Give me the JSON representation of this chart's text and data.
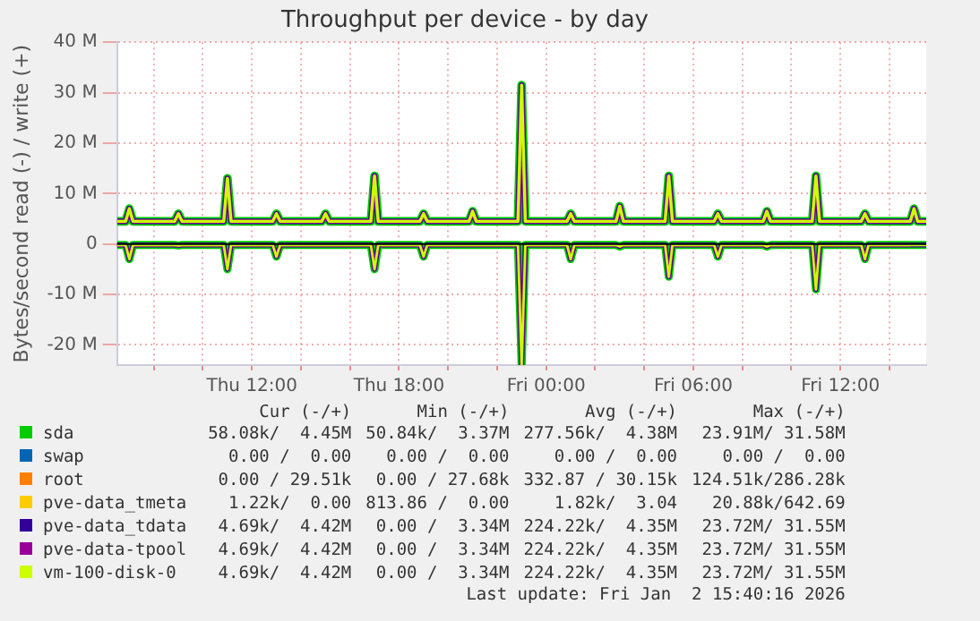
{
  "chart_data": {
    "type": "line",
    "title": "Throughput per device - by day",
    "ylabel": "Bytes/second read (-) / write (+)",
    "x": [
      "2026-01-01T06:30",
      "2026-01-01T06:51",
      "2026-01-01T07:00",
      "2026-01-01T07:09",
      "2026-01-01T08:51",
      "2026-01-01T09:00",
      "2026-01-01T09:09",
      "2026-01-01T10:51",
      "2026-01-01T11:00",
      "2026-01-01T11:09",
      "2026-01-01T12:51",
      "2026-01-01T13:00",
      "2026-01-01T13:09",
      "2026-01-01T14:51",
      "2026-01-01T15:00",
      "2026-01-01T15:09",
      "2026-01-01T16:51",
      "2026-01-01T17:00",
      "2026-01-01T17:09",
      "2026-01-01T18:51",
      "2026-01-01T19:00",
      "2026-01-01T19:09",
      "2026-01-01T20:51",
      "2026-01-01T21:00",
      "2026-01-01T21:09",
      "2026-01-01T22:51",
      "2026-01-01T23:00",
      "2026-01-01T23:09",
      "2026-01-02T00:51",
      "2026-01-02T01:00",
      "2026-01-02T01:09",
      "2026-01-02T02:51",
      "2026-01-02T03:00",
      "2026-01-02T03:09",
      "2026-01-02T04:51",
      "2026-01-02T05:00",
      "2026-01-02T05:09",
      "2026-01-02T06:51",
      "2026-01-02T07:00",
      "2026-01-02T07:09",
      "2026-01-02T08:51",
      "2026-01-02T09:00",
      "2026-01-02T09:09",
      "2026-01-02T10:51",
      "2026-01-02T11:00",
      "2026-01-02T11:09",
      "2026-01-02T12:51",
      "2026-01-02T13:00",
      "2026-01-02T13:09",
      "2026-01-02T14:51",
      "2026-01-02T15:00",
      "2026-01-02T15:09",
      "2026-01-02T15:30"
    ],
    "xlim": [
      "2026-01-01T06:30",
      "2026-01-02T15:30"
    ],
    "xticks": [
      {
        "value": "2026-01-01T08:00",
        "label": null
      },
      {
        "value": "2026-01-01T10:00",
        "label": null
      },
      {
        "value": "2026-01-01T12:00",
        "label": "Thu 12:00"
      },
      {
        "value": "2026-01-01T14:00",
        "label": null
      },
      {
        "value": "2026-01-01T16:00",
        "label": null
      },
      {
        "value": "2026-01-01T18:00",
        "label": "Thu 18:00"
      },
      {
        "value": "2026-01-01T20:00",
        "label": null
      },
      {
        "value": "2026-01-01T22:00",
        "label": null
      },
      {
        "value": "2026-01-02T00:00",
        "label": "Fri 00:00"
      },
      {
        "value": "2026-01-02T02:00",
        "label": null
      },
      {
        "value": "2026-01-02T04:00",
        "label": null
      },
      {
        "value": "2026-01-02T06:00",
        "label": "Fri 06:00"
      },
      {
        "value": "2026-01-02T08:00",
        "label": null
      },
      {
        "value": "2026-01-02T10:00",
        "label": null
      },
      {
        "value": "2026-01-02T12:00",
        "label": "Fri 12:00"
      },
      {
        "value": "2026-01-02T14:00",
        "label": null
      }
    ],
    "ylim": [
      -24,
      40
    ],
    "yticks": [
      {
        "value": -20,
        "label": "-20 M"
      },
      {
        "value": -10,
        "label": "-10 M"
      },
      0,
      {
        "value": 10,
        "label": "10 M"
      },
      {
        "value": 20,
        "label": "20 M"
      },
      {
        "value": 30,
        "label": "30 M"
      },
      {
        "value": 40,
        "label": "40 M"
      }
    ],
    "grid": true,
    "legend": "bottom",
    "marker": "none",
    "line_style": "solid",
    "ref_lines": [
      {
        "axis": "y",
        "value": 0,
        "color": "#000000"
      }
    ],
    "series": [
      {
        "name": "sda",
        "color": "#00cc00",
        "values": [
          4.5,
          4.5,
          7,
          4.5,
          4.5,
          6,
          4.5,
          4.5,
          13,
          4.5,
          4.5,
          6,
          4.5,
          4.5,
          6,
          4.5,
          4.5,
          13.5,
          4.5,
          4.5,
          6,
          4.5,
          4.5,
          6.5,
          4.5,
          4.5,
          31.5,
          4.5,
          4.5,
          6,
          4.5,
          4.5,
          7.5,
          4.5,
          4.5,
          13.5,
          4.5,
          4.5,
          6,
          4.5,
          4.5,
          6.5,
          4.5,
          4.5,
          13.5,
          4.5,
          4.5,
          6,
          4.5,
          4.5,
          7,
          4.5,
          4.5
        ]
      },
      {
        "color": "#00cc00",
        "values": [
          -0.2,
          -0.2,
          -3,
          -0.2,
          -0.2,
          -0.3,
          -0.2,
          -0.2,
          -5,
          -0.2,
          -0.2,
          -2.5,
          -0.2,
          -0.2,
          -0.2,
          -0.2,
          -0.2,
          -5,
          -0.2,
          -0.2,
          -2.5,
          -0.2,
          -0.2,
          -0.2,
          -0.2,
          -0.2,
          -24,
          -0.2,
          -0.2,
          -3,
          -0.2,
          -0.2,
          -0.5,
          -0.2,
          -0.2,
          -6.5,
          -0.2,
          -0.2,
          -2.5,
          -0.2,
          -0.2,
          -0.5,
          -0.2,
          -0.2,
          -9,
          -0.2,
          -0.2,
          -3,
          -0.2,
          -0.2,
          -0.2,
          -0.2,
          -0.2
        ]
      },
      {
        "name": "swap",
        "color": "#0066b3",
        "values": [
          null,
          null,
          null,
          null,
          null,
          null,
          null,
          null,
          null,
          null,
          null,
          null,
          null,
          null,
          null,
          null,
          null,
          null,
          null,
          null,
          null,
          null,
          null,
          null,
          null,
          null,
          null,
          null,
          null,
          null,
          null,
          null,
          null,
          null,
          null,
          null,
          null,
          null,
          null,
          null,
          null,
          null,
          null,
          null,
          null,
          null,
          null,
          null,
          null,
          null,
          null,
          null,
          null
        ]
      },
      {
        "name": "root",
        "color": "#ff8000",
        "values": [
          null,
          null,
          null,
          null,
          null,
          null,
          null,
          null,
          null,
          null,
          null,
          null,
          null,
          null,
          null,
          null,
          null,
          null,
          null,
          null,
          null,
          null,
          null,
          null,
          null,
          null,
          null,
          null,
          null,
          null,
          null,
          null,
          null,
          null,
          null,
          null,
          null,
          null,
          null,
          null,
          null,
          null,
          null,
          null,
          null,
          null,
          null,
          null,
          null,
          null,
          null,
          null,
          null
        ]
      },
      {
        "name": "pve-data_tmeta",
        "color": "#ffcc00",
        "values": [
          null,
          null,
          null,
          null,
          null,
          null,
          null,
          null,
          null,
          null,
          null,
          null,
          null,
          null,
          null,
          null,
          null,
          null,
          null,
          null,
          null,
          null,
          null,
          null,
          null,
          null,
          null,
          null,
          null,
          null,
          null,
          null,
          null,
          null,
          null,
          null,
          null,
          null,
          null,
          null,
          null,
          null,
          null,
          null,
          null,
          null,
          null,
          null,
          null,
          null,
          null,
          null,
          null
        ]
      },
      {
        "name": "pve-data_tdata",
        "color": "#330099",
        "values": [
          4.5,
          4.5,
          7,
          4.5,
          4.5,
          6,
          4.5,
          4.5,
          13,
          4.5,
          4.5,
          6,
          4.5,
          4.5,
          6,
          4.5,
          4.5,
          13.5,
          4.5,
          4.5,
          6,
          4.5,
          4.5,
          6.5,
          4.5,
          4.5,
          31.5,
          4.5,
          4.5,
          6,
          4.5,
          4.5,
          7.5,
          4.5,
          4.5,
          13.5,
          4.5,
          4.5,
          6,
          4.5,
          4.5,
          6.5,
          4.5,
          4.5,
          13.5,
          4.5,
          4.5,
          6,
          4.5,
          4.5,
          7,
          4.5,
          4.5
        ]
      },
      {
        "color": "#330099",
        "values": [
          -0.2,
          -0.2,
          -3,
          -0.2,
          -0.2,
          -0.3,
          -0.2,
          -0.2,
          -5,
          -0.2,
          -0.2,
          -2.5,
          -0.2,
          -0.2,
          -0.2,
          -0.2,
          -0.2,
          -5,
          -0.2,
          -0.2,
          -2.5,
          -0.2,
          -0.2,
          -0.2,
          -0.2,
          -0.2,
          -24,
          -0.2,
          -0.2,
          -3,
          -0.2,
          -0.2,
          -0.5,
          -0.2,
          -0.2,
          -6.5,
          -0.2,
          -0.2,
          -2.5,
          -0.2,
          -0.2,
          -0.5,
          -0.2,
          -0.2,
          -9,
          -0.2,
          -0.2,
          -3,
          -0.2,
          -0.2,
          -0.2,
          -0.2,
          -0.2
        ]
      },
      {
        "name": "pve-data-tpool",
        "color": "#990099",
        "values": [
          4.5,
          4.5,
          7,
          4.5,
          4.5,
          6,
          4.5,
          4.5,
          13,
          4.5,
          4.5,
          6,
          4.5,
          4.5,
          6,
          4.5,
          4.5,
          13.5,
          4.5,
          4.5,
          6,
          4.5,
          4.5,
          6.5,
          4.5,
          4.5,
          31.5,
          4.5,
          4.5,
          6,
          4.5,
          4.5,
          7.5,
          4.5,
          4.5,
          13.5,
          4.5,
          4.5,
          6,
          4.5,
          4.5,
          6.5,
          4.5,
          4.5,
          13.5,
          4.5,
          4.5,
          6,
          4.5,
          4.5,
          7,
          4.5,
          4.5
        ]
      },
      {
        "color": "#990099",
        "values": [
          -0.2,
          -0.2,
          -3,
          -0.2,
          -0.2,
          -0.3,
          -0.2,
          -0.2,
          -5,
          -0.2,
          -0.2,
          -2.5,
          -0.2,
          -0.2,
          -0.2,
          -0.2,
          -0.2,
          -5,
          -0.2,
          -0.2,
          -2.5,
          -0.2,
          -0.2,
          -0.2,
          -0.2,
          -0.2,
          -24,
          -0.2,
          -0.2,
          -3,
          -0.2,
          -0.2,
          -0.5,
          -0.2,
          -0.2,
          -6.5,
          -0.2,
          -0.2,
          -2.5,
          -0.2,
          -0.2,
          -0.5,
          -0.2,
          -0.2,
          -9,
          -0.2,
          -0.2,
          -3,
          -0.2,
          -0.2,
          null,
          null,
          null
        ]
      },
      {
        "name": "vm-100-disk-0",
        "color": "#ccff00",
        "values": [
          4.5,
          4.5,
          7,
          4.5,
          4.5,
          6,
          4.5,
          4.5,
          13,
          4.5,
          4.5,
          6,
          4.5,
          4.5,
          6,
          4.5,
          4.5,
          13.5,
          4.5,
          4.5,
          6,
          4.5,
          4.5,
          6.5,
          4.5,
          4.5,
          31.5,
          4.5,
          4.5,
          6,
          4.5,
          4.5,
          7.5,
          4.5,
          4.5,
          13.5,
          4.5,
          4.5,
          6,
          4.5,
          4.5,
          6.5,
          4.5,
          4.5,
          13.5,
          4.5,
          4.5,
          6,
          4.5,
          4.5,
          7,
          4.5,
          4.5
        ]
      },
      {
        "color": "#ccff00",
        "values": [
          -0.2,
          -0.2,
          -3,
          -0.2,
          -0.2,
          -0.3,
          -0.2,
          -0.2,
          -5,
          -0.2,
          -0.2,
          -2.5,
          -0.2,
          -0.2,
          -0.2,
          -0.2,
          -0.2,
          -5,
          -0.2,
          -0.2,
          -2.5,
          -0.2,
          -0.2,
          -0.2,
          -0.2,
          -0.2,
          -24,
          -0.2,
          -0.2,
          -3,
          -0.2,
          -0.2,
          -0.5,
          -0.2,
          -0.2,
          -6.5,
          -0.2,
          -0.2,
          -2.5,
          -0.2,
          -0.2,
          -0.5,
          -0.2,
          -0.2,
          -9,
          -0.2,
          -0.2,
          -3,
          -0.2,
          -0.2,
          -0.2,
          -0.2,
          -0.2
        ]
      }
    ],
    "annotations": [
      "Cur (-/+)",
      "Min (-/+)",
      "Avg (-/+)",
      "Max (-/+)",
      "58.08k/  4.45M",
      "50.84k/  3.37M",
      "277.56k/  4.38M",
      "23.91M/ 31.58M",
      "0.00 /  0.00",
      "0.00 /  0.00",
      "0.00 /  0.00",
      "0.00 /  0.00",
      "0.00 / 29.51k",
      "0.00 / 27.68k",
      "332.87 / 30.15k",
      "124.51k/286.28k",
      "1.22k/  0.00",
      "813.86 /  0.00",
      "1.82k/  3.04",
      "20.88k/642.69",
      "4.69k/  4.42M",
      "0.00 /  3.34M",
      "224.22k/  4.35M",
      "23.72M/ 31.55M",
      "4.69k/  4.42M",
      "0.00 /  3.34M",
      "224.22k/  4.35M",
      "23.72M/ 31.55M",
      "4.69k/  4.42M",
      "0.00 /  3.34M",
      "224.22k/  4.35M",
      "23.72M/ 31.55M",
      "Last update: Fri Jan  2 15:40:16 2026"
    ]
  }
}
